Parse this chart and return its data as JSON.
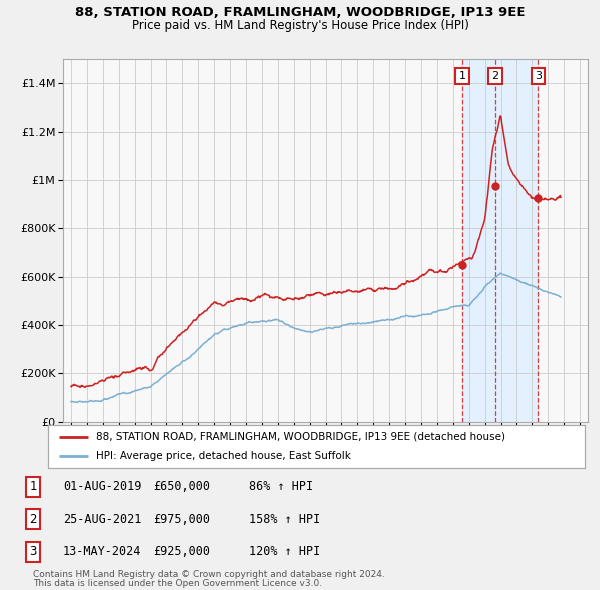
{
  "title1": "88, STATION ROAD, FRAMLINGHAM, WOODBRIDGE, IP13 9EE",
  "title2": "Price paid vs. HM Land Registry's House Price Index (HPI)",
  "ylim": [
    0,
    1500000
  ],
  "xlim_start": 1994.5,
  "xlim_end": 2027.5,
  "hpi_color": "#7bafd4",
  "price_color": "#cc2222",
  "shade_color": "#ddeeff",
  "grid_color": "#cccccc",
  "bg_color": "#f0f0f0",
  "plot_bg_color": "#f8f8f8",
  "sale_dates": [
    2019.583,
    2021.646,
    2024.37
  ],
  "sale_prices": [
    650000,
    975000,
    925000
  ],
  "sale_labels": [
    "1",
    "2",
    "3"
  ],
  "vline_shade_start": 2019.583,
  "vline_shade_end": 2024.37,
  "legend_line1": "88, STATION ROAD, FRAMLINGHAM, WOODBRIDGE, IP13 9EE (detached house)",
  "legend_line2": "HPI: Average price, detached house, East Suffolk",
  "table_entries": [
    {
      "label": "1",
      "date": "01-AUG-2019",
      "price": "£650,000",
      "hpi": "86% ↑ HPI"
    },
    {
      "label": "2",
      "date": "25-AUG-2021",
      "price": "£975,000",
      "hpi": "158% ↑ HPI"
    },
    {
      "label": "3",
      "date": "13-MAY-2024",
      "price": "£925,000",
      "hpi": "120% ↑ HPI"
    }
  ],
  "footnote1": "Contains HM Land Registry data © Crown copyright and database right 2024.",
  "footnote2": "This data is licensed under the Open Government Licence v3.0.",
  "yticks": [
    0,
    200000,
    400000,
    600000,
    800000,
    1000000,
    1200000,
    1400000
  ],
  "ytick_labels": [
    "£0",
    "£200K",
    "£400K",
    "£600K",
    "£800K",
    "£1M",
    "£1.2M",
    "£1.4M"
  ]
}
